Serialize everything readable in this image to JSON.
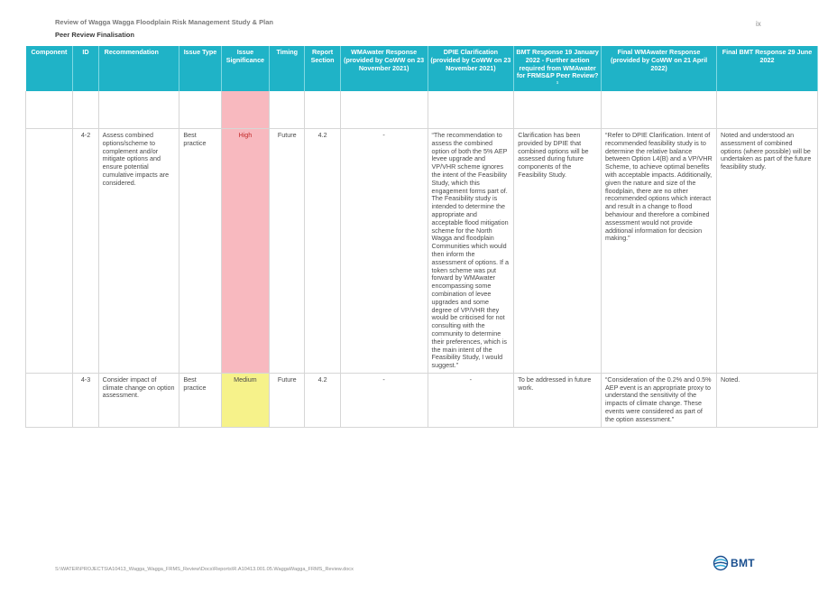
{
  "header": {
    "title": "Review of Wagga Wagga Floodplain Risk Management Study & Plan",
    "subtitle": "Peer Review Finalisation",
    "page_number": "ix"
  },
  "table": {
    "columns": [
      "Component",
      "ID",
      "Recommendation",
      "Issue Type",
      "Issue Significance",
      "Timing",
      "Report Section",
      "WMAwater Response (provided by CoWW on 23 November 2021)",
      "DPIE Clarification (provided by CoWW on 23 November 2021)",
      "BMT Response 19 January 2022 - Further action required from WMAwater for FRMS&P Peer Review?¹",
      "Final WMAwater Response (provided by CoWW on 21 April 2022)",
      "Final BMT Response 29 June 2022"
    ],
    "rows": [
      {
        "component": "",
        "id": "4-2",
        "recommendation": "Assess combined options/scheme to complement and/or mitigate options and ensure potential cumulative impacts are considered.",
        "issue_type": "Best practice",
        "significance": "High",
        "timing": "Future",
        "section": "4.2",
        "wma_response": "-",
        "dpie": "“The recommendation to assess the combined option of both the 5% AEP levee upgrade and VP/VHR scheme ignores the intent of the Feasibility Study, which this engagement forms part of. The Feasibility study is intended to determine the appropriate and acceptable flood mitigation scheme for the North Wagga and floodplain Communities which would then inform the assessment of options. If a token scheme was put forward by WMAwater encompassing some combination of levee upgrades and some degree of VP/VHR they would be criticised for not consulting with the community to determine their preferences, which is the main intent of the Feasibility Study, I would suggest.”",
        "bmt_response": "Clarification has been provided by DPIE that combined options will be assessed during future components of the Feasibility Study.",
        "final_wma": "“Refer to DPIE Clarification. Intent of recommended feasibility study is to determine the relative balance between Option L4(B) and a VP/VHR Scheme, to achieve optimal benefits with acceptable impacts. Additionally, given the nature and size of the floodplain, there are no other recommended options which interact and result in a change to flood behaviour and therefore a combined assessment would not provide additional information for decision making.”",
        "final_bmt": "Noted and understood an assessment of combined options (where possible) will be undertaken as part of the future feasibility study."
      },
      {
        "component": "",
        "id": "4-3",
        "recommendation": "Consider impact of climate change on option assessment.",
        "issue_type": "Best practice",
        "significance": "Medium",
        "timing": "Future",
        "section": "4.2",
        "wma_response": "-",
        "dpie": "-",
        "bmt_response": "To be addressed in future work.",
        "final_wma": "“Consideration of the 0.2% and 0.5% AEP event is an appropriate proxy to understand the sensitivity of the impacts of climate change. These events were considered as part of the option assessment.”",
        "final_bmt": "Noted."
      }
    ]
  },
  "footer": {
    "path": "S:\\WATER\\PROJECTS\\A10413_Wagga_Wagga_FRMS_Review\\Docs\\Reports\\R.A10413.001.05.WaggaWagga_FRMS_Review.docx",
    "logo_text": "BMT"
  },
  "colors": {
    "header_bg": "#1fb3c7",
    "high_bg": "#f8b9bf",
    "high_text": "#c22a2a",
    "medium_bg": "#f6f28a",
    "logo_blue": "#1a4f8f"
  }
}
